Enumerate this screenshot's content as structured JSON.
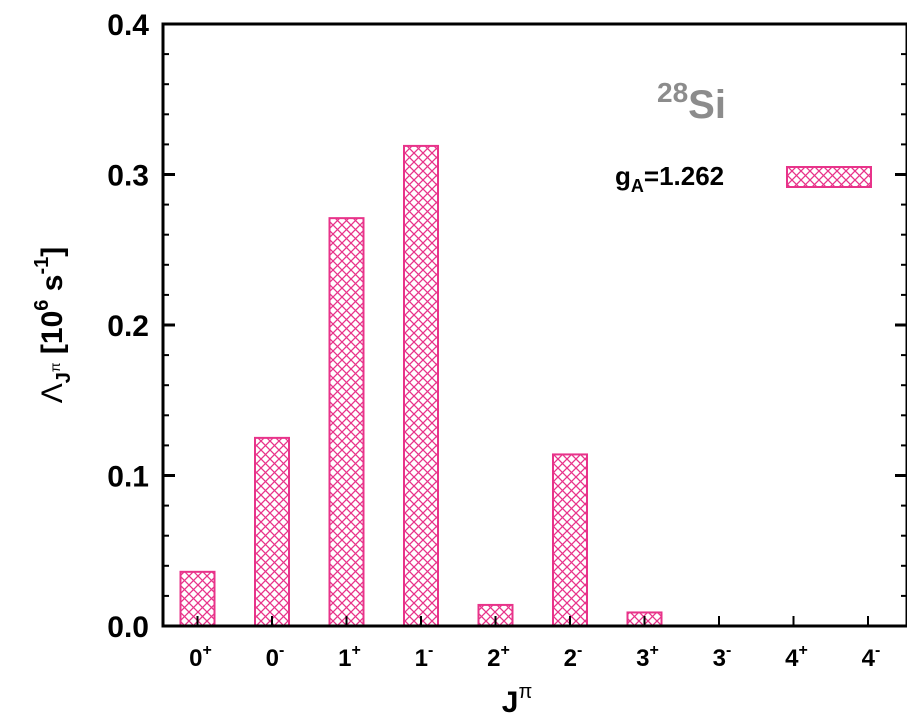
{
  "chart_data": {
    "type": "bar",
    "categories": [
      {
        "base": "0",
        "sup": "+"
      },
      {
        "base": "0",
        "sup": "-"
      },
      {
        "base": "1",
        "sup": "+"
      },
      {
        "base": "1",
        "sup": "-"
      },
      {
        "base": "2",
        "sup": "+"
      },
      {
        "base": "2",
        "sup": "-"
      },
      {
        "base": "3",
        "sup": "+"
      },
      {
        "base": "3",
        "sup": "-"
      },
      {
        "base": "4",
        "sup": "+"
      },
      {
        "base": "4",
        "sup": "-"
      }
    ],
    "series": [
      {
        "name": "g_A=1.262",
        "values": [
          0.036,
          0.125,
          0.271,
          0.319,
          0.014,
          0.114,
          0.009,
          0.0,
          0.0,
          0.0
        ]
      }
    ],
    "ylim": [
      0.0,
      0.4
    ],
    "yticks": [
      "0.0",
      "0.1",
      "0.2",
      "0.3",
      "0.4"
    ],
    "xlabel": {
      "base": "J",
      "sup": "π"
    },
    "ylabel": {
      "pre": "Λ",
      "sub": "J",
      "subsup": "π",
      "mid": " [10",
      "sup1": "6",
      "post": " s",
      "sup2": "-1",
      "end": "]"
    },
    "legend": {
      "base": "g",
      "sub": "A",
      "rest": "=1.262",
      "position": "top-right"
    },
    "annotation": {
      "sup": "28",
      "base": "Si"
    },
    "colors": {
      "bar": "#e8338a",
      "axis": "#000000",
      "annotation": "#8c8c8c"
    }
  }
}
